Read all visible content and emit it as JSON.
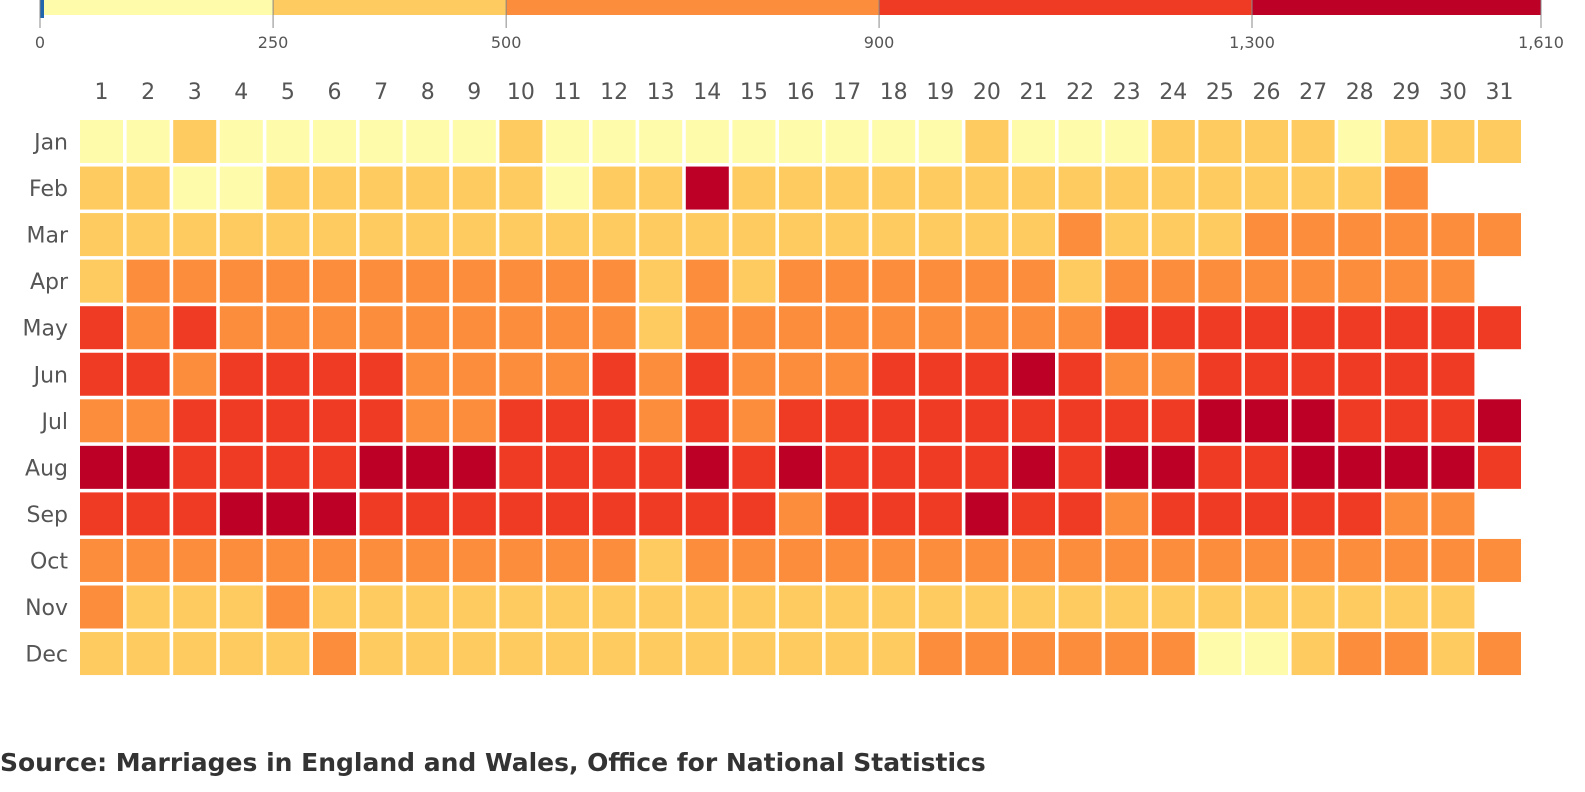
{
  "chart_data": {
    "type": "heatmap",
    "title": "",
    "legend": {
      "placement": "top",
      "breaks": [
        0,
        250,
        500,
        900,
        1300,
        1610
      ],
      "tick_labels": [
        "0",
        "250",
        "500",
        "900",
        "1,300",
        "1,610"
      ],
      "colors": [
        "#fefcaa",
        "#fdcb5f",
        "#fc8d3c",
        "#ef3b23",
        "#bd0026"
      ],
      "marker_value": 0,
      "marker_color": "#2166ac"
    },
    "x_labels": [
      "1",
      "2",
      "3",
      "4",
      "5",
      "6",
      "7",
      "8",
      "9",
      "10",
      "11",
      "12",
      "13",
      "14",
      "15",
      "16",
      "17",
      "18",
      "19",
      "20",
      "21",
      "22",
      "23",
      "24",
      "25",
      "26",
      "27",
      "28",
      "29",
      "30",
      "31"
    ],
    "y_labels": [
      "Jan",
      "Feb",
      "Mar",
      "Apr",
      "May",
      "Jun",
      "Jul",
      "Aug",
      "Sep",
      "Oct",
      "Nov",
      "Dec"
    ],
    "value_note": "values are color-band levels: 1 = 0–250, 2 = 250–500, 3 = 500–900, 4 = 900–1,300, 5 = 1,300–1,610; null = no date",
    "rows": [
      [
        1,
        1,
        2,
        1,
        1,
        1,
        1,
        1,
        1,
        2,
        1,
        1,
        1,
        1,
        1,
        1,
        1,
        1,
        1,
        2,
        1,
        1,
        1,
        2,
        2,
        2,
        2,
        1,
        2,
        2,
        2
      ],
      [
        2,
        2,
        1,
        1,
        2,
        2,
        2,
        2,
        2,
        2,
        1,
        2,
        2,
        5,
        2,
        2,
        2,
        2,
        2,
        2,
        2,
        2,
        2,
        2,
        2,
        2,
        2,
        2,
        3,
        null,
        null
      ],
      [
        2,
        2,
        2,
        2,
        2,
        2,
        2,
        2,
        2,
        2,
        2,
        2,
        2,
        2,
        2,
        2,
        2,
        2,
        2,
        2,
        2,
        3,
        2,
        2,
        2,
        3,
        3,
        3,
        3,
        3,
        3
      ],
      [
        2,
        3,
        3,
        3,
        3,
        3,
        3,
        3,
        3,
        3,
        3,
        3,
        2,
        3,
        2,
        3,
        3,
        3,
        3,
        3,
        3,
        2,
        3,
        3,
        3,
        3,
        3,
        3,
        3,
        3,
        null
      ],
      [
        4,
        3,
        4,
        3,
        3,
        3,
        3,
        3,
        3,
        3,
        3,
        3,
        2,
        3,
        3,
        3,
        3,
        3,
        3,
        3,
        3,
        3,
        4,
        4,
        4,
        4,
        4,
        4,
        4,
        4,
        4
      ],
      [
        4,
        4,
        3,
        4,
        4,
        4,
        4,
        3,
        3,
        3,
        3,
        4,
        3,
        4,
        3,
        3,
        3,
        4,
        4,
        4,
        5,
        4,
        3,
        3,
        4,
        4,
        4,
        4,
        4,
        4,
        null
      ],
      [
        3,
        3,
        4,
        4,
        4,
        4,
        4,
        3,
        3,
        4,
        4,
        4,
        3,
        4,
        3,
        4,
        4,
        4,
        4,
        4,
        4,
        4,
        4,
        4,
        5,
        5,
        5,
        4,
        4,
        4,
        5
      ],
      [
        5,
        5,
        4,
        4,
        4,
        4,
        5,
        5,
        5,
        4,
        4,
        4,
        4,
        5,
        4,
        5,
        4,
        4,
        4,
        4,
        5,
        4,
        5,
        5,
        4,
        4,
        5,
        5,
        5,
        5,
        4
      ],
      [
        4,
        4,
        4,
        5,
        5,
        5,
        4,
        4,
        4,
        4,
        4,
        4,
        4,
        4,
        4,
        3,
        4,
        4,
        4,
        5,
        4,
        4,
        3,
        4,
        4,
        4,
        4,
        4,
        3,
        3,
        null
      ],
      [
        3,
        3,
        3,
        3,
        3,
        3,
        3,
        3,
        3,
        3,
        3,
        3,
        2,
        3,
        3,
        3,
        3,
        3,
        3,
        3,
        3,
        3,
        3,
        3,
        3,
        3,
        3,
        3,
        3,
        3,
        3
      ],
      [
        3,
        2,
        2,
        2,
        3,
        2,
        2,
        2,
        2,
        2,
        2,
        2,
        2,
        2,
        2,
        2,
        2,
        2,
        2,
        2,
        2,
        2,
        2,
        2,
        2,
        2,
        2,
        2,
        2,
        2,
        null
      ],
      [
        2,
        2,
        2,
        2,
        2,
        3,
        2,
        2,
        2,
        2,
        2,
        2,
        2,
        2,
        2,
        2,
        2,
        2,
        3,
        3,
        3,
        3,
        3,
        3,
        1,
        1,
        2,
        3,
        3,
        2,
        3
      ]
    ]
  },
  "footer": {
    "source": "Source: Marriages in England and Wales, Office for National Statistics"
  }
}
